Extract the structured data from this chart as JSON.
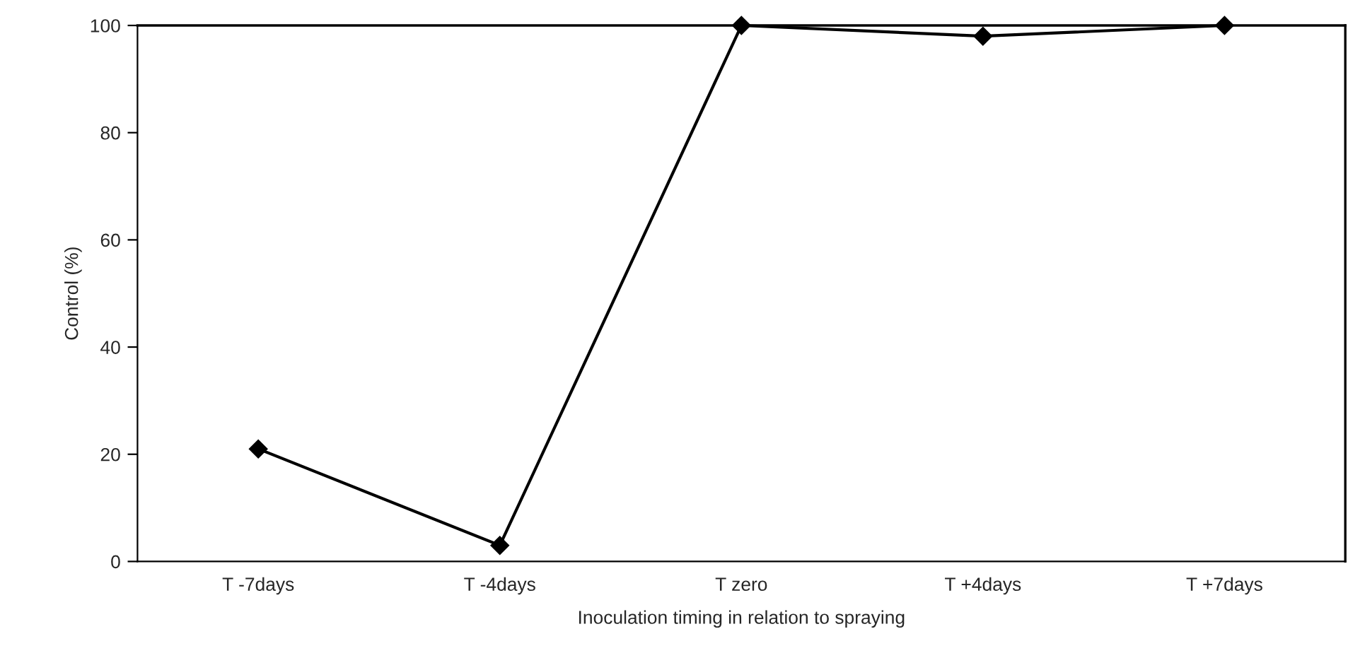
{
  "chart_data": {
    "type": "line",
    "xlabel": "Inoculation timing in relation to spraying",
    "ylabel": "Control (%)",
    "categories": [
      "T -7days",
      "T -4days",
      "T zero",
      "T +4days",
      "T +7days"
    ],
    "series": [
      {
        "color": "#000000",
        "values": [
          21,
          3,
          100,
          98,
          100
        ]
      }
    ],
    "ylim": [
      0,
      100
    ],
    "yticks": [
      0,
      20,
      40,
      60,
      80,
      100
    ],
    "grid": false,
    "legend": false,
    "marker": "diamond",
    "line_style": "solid"
  }
}
